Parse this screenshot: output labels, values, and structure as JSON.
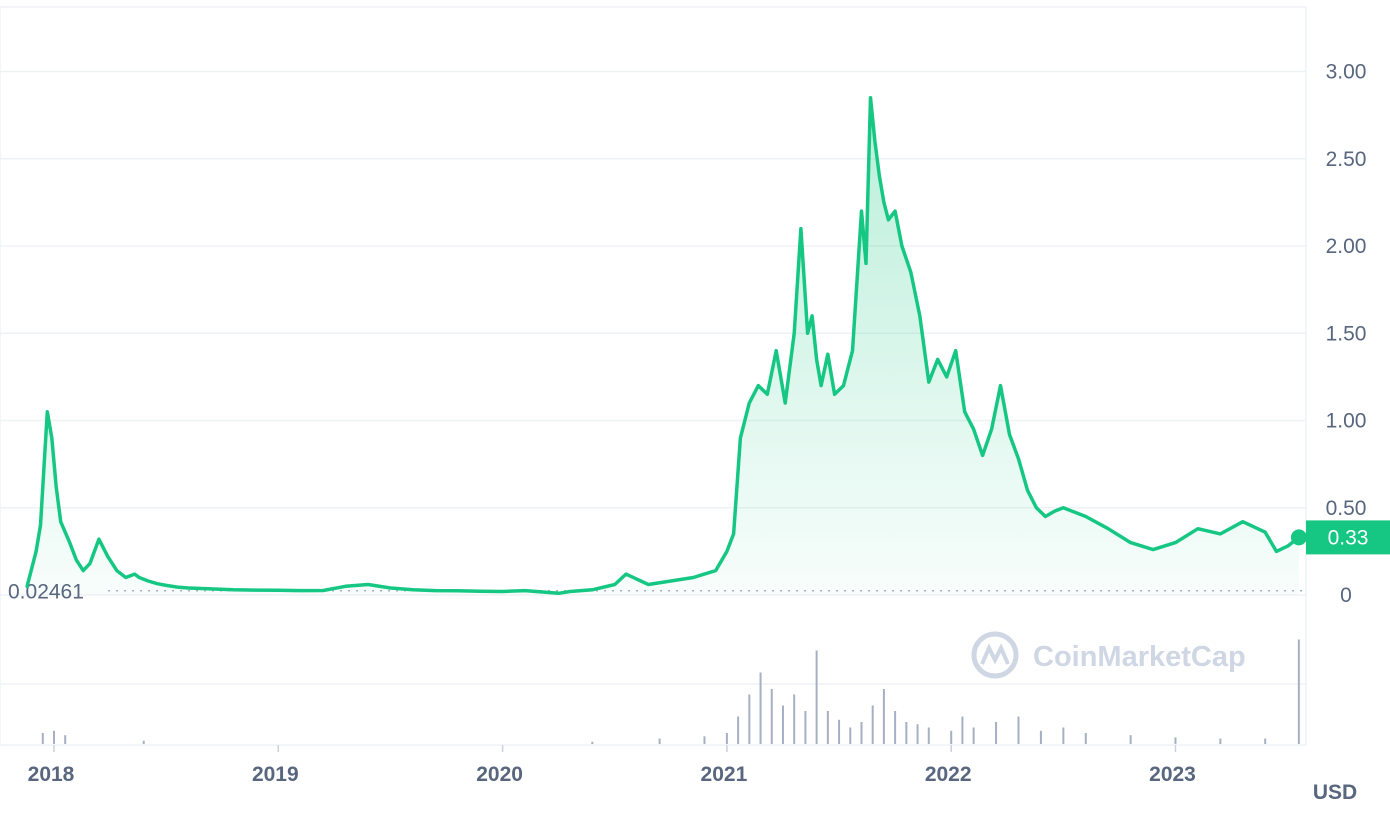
{
  "chart_data": {
    "type": "area",
    "y_ticks": [
      "0",
      "0.50",
      "1.00",
      "1.50",
      "2.00",
      "2.50",
      "3.00"
    ],
    "y_tick_values": [
      0,
      0.5,
      1.0,
      1.5,
      2.0,
      2.5,
      3.0
    ],
    "ylim": [
      0,
      3.3
    ],
    "x_ticks": [
      "2018",
      "2019",
      "2020",
      "2021",
      "2022",
      "2023"
    ],
    "x_tick_values": [
      2018.0,
      2019.0,
      2020.0,
      2021.0,
      2022.0,
      2023.0
    ],
    "xlim": [
      2017.85,
      2023.58
    ],
    "currency_label": "USD",
    "current_price_label": "0.33",
    "current_price": 0.33,
    "baseline_label": "0.02461",
    "baseline_value": 0.02461,
    "watermark": "CoinMarketCap",
    "grid": true,
    "colors": {
      "line": "#16c784",
      "down": "#ea3943",
      "badge": "#16c784",
      "volume": "#a6b0c3"
    },
    "series": [
      {
        "x": [
          2017.88,
          2017.92,
          2017.94,
          2017.97,
          2017.99,
          2018.01,
          2018.03,
          2018.05,
          2018.07,
          2018.1,
          2018.13,
          2018.16,
          2018.2,
          2018.24,
          2018.28,
          2018.32,
          2018.36,
          2018.38,
          2018.42,
          2018.46,
          2018.5,
          2018.55,
          2018.6,
          2018.7,
          2018.8,
          2018.9,
          2019.0,
          2019.1,
          2019.2,
          2019.3,
          2019.4,
          2019.5,
          2019.6,
          2019.7,
          2019.8,
          2019.9,
          2020.0,
          2020.1,
          2020.2,
          2020.25,
          2020.3,
          2020.4,
          2020.5,
          2020.55,
          2020.65,
          2020.75,
          2020.85,
          2020.95,
          2021.0,
          2021.03,
          2021.06,
          2021.1,
          2021.14,
          2021.18,
          2021.22,
          2021.26,
          2021.3,
          2021.33,
          2021.36,
          2021.38,
          2021.4,
          2021.42,
          2021.45,
          2021.48,
          2021.52,
          2021.56,
          2021.6,
          2021.62,
          2021.64,
          2021.66,
          2021.68,
          2021.7,
          2021.72,
          2021.75,
          2021.78,
          2021.82,
          2021.86,
          2021.9,
          2021.94,
          2021.98,
          2022.02,
          2022.06,
          2022.1,
          2022.14,
          2022.18,
          2022.22,
          2022.26,
          2022.3,
          2022.34,
          2022.38,
          2022.42,
          2022.46,
          2022.5,
          2022.6,
          2022.7,
          2022.8,
          2022.9,
          2023.0,
          2023.1,
          2023.2,
          2023.3,
          2023.4,
          2023.45,
          2023.5,
          2023.55
        ],
        "y": [
          0.05,
          0.25,
          0.4,
          1.05,
          0.9,
          0.62,
          0.42,
          0.36,
          0.3,
          0.2,
          0.14,
          0.18,
          0.32,
          0.22,
          0.14,
          0.1,
          0.12,
          0.1,
          0.08,
          0.065,
          0.055,
          0.045,
          0.04,
          0.035,
          0.03,
          0.028,
          0.027,
          0.025,
          0.026,
          0.05,
          0.06,
          0.04,
          0.03,
          0.025,
          0.024,
          0.022,
          0.02,
          0.025,
          0.015,
          0.01,
          0.02,
          0.03,
          0.06,
          0.12,
          0.06,
          0.08,
          0.1,
          0.14,
          0.25,
          0.35,
          0.9,
          1.1,
          1.2,
          1.15,
          1.4,
          1.1,
          1.5,
          2.1,
          1.5,
          1.6,
          1.35,
          1.2,
          1.38,
          1.15,
          1.2,
          1.4,
          2.2,
          1.9,
          2.85,
          2.6,
          2.4,
          2.25,
          2.15,
          2.2,
          2.0,
          1.85,
          1.6,
          1.22,
          1.35,
          1.25,
          1.4,
          1.05,
          0.95,
          0.8,
          0.95,
          1.2,
          0.92,
          0.78,
          0.6,
          0.5,
          0.45,
          0.48,
          0.5,
          0.45,
          0.38,
          0.3,
          0.26,
          0.3,
          0.38,
          0.35,
          0.42,
          0.36,
          0.25,
          0.28,
          0.33
        ]
      }
    ],
    "volume": {
      "x": [
        2017.95,
        2018.0,
        2018.05,
        2018.4,
        2020.4,
        2020.7,
        2020.9,
        2021.0,
        2021.05,
        2021.1,
        2021.15,
        2021.2,
        2021.25,
        2021.3,
        2021.35,
        2021.4,
        2021.45,
        2021.5,
        2021.55,
        2021.6,
        2021.65,
        2021.7,
        2021.75,
        2021.8,
        2021.85,
        2021.9,
        2022.0,
        2022.05,
        2022.1,
        2022.2,
        2022.3,
        2022.4,
        2022.5,
        2022.6,
        2022.8,
        2023.0,
        2023.2,
        2023.4,
        2023.55
      ],
      "h": [
        0.1,
        0.12,
        0.08,
        0.03,
        0.02,
        0.05,
        0.07,
        0.1,
        0.25,
        0.45,
        0.65,
        0.5,
        0.35,
        0.45,
        0.3,
        0.85,
        0.3,
        0.22,
        0.15,
        0.2,
        0.35,
        0.5,
        0.3,
        0.2,
        0.18,
        0.15,
        0.12,
        0.25,
        0.15,
        0.2,
        0.25,
        0.12,
        0.15,
        0.1,
        0.08,
        0.06,
        0.05,
        0.05,
        0.95
      ]
    }
  }
}
